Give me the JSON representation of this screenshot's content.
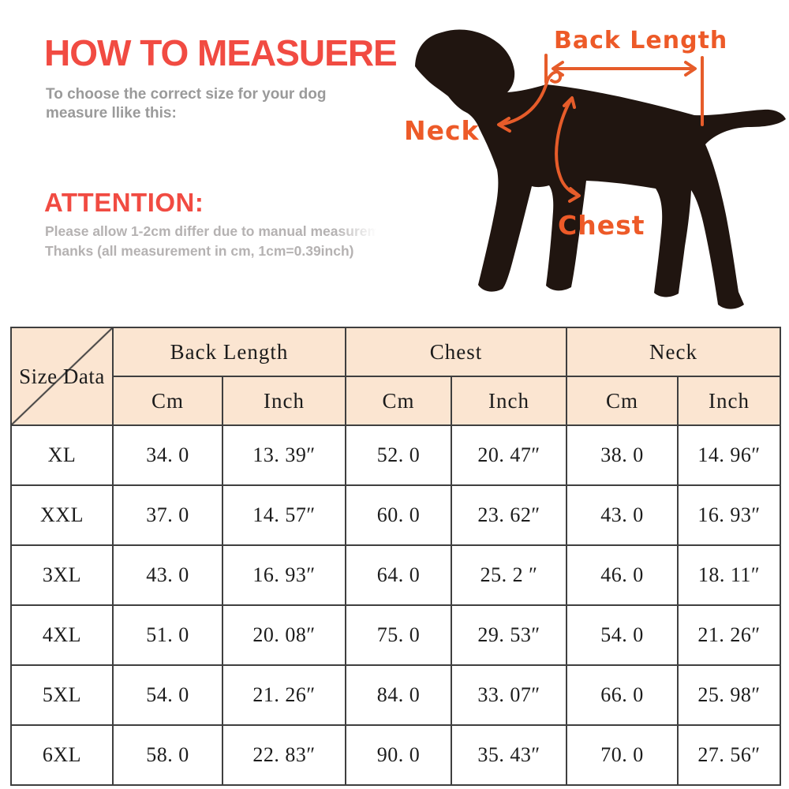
{
  "header": {
    "title": "HOW TO MEASUERE",
    "subtitle_line1": "To choose the correct size for your dog",
    "subtitle_line2": "measure llike this:",
    "attention_title": "ATTENTION:",
    "attention_line1": "Please allow 1-2cm differ due to manual measureme",
    "attention_line2": "Thanks (all measurement in cm, 1cm=0.39inch)"
  },
  "diagram": {
    "labels": {
      "back_length": "Back Length",
      "neck": "Neck",
      "chest": "Chest"
    },
    "colors": {
      "annotation_orange": "#ed5a28",
      "dog_silhouette": "#201510"
    }
  },
  "size_table": {
    "corner_label": "Size Data",
    "groups": [
      {
        "label": "Back Length"
      },
      {
        "label": "Chest"
      },
      {
        "label": "Neck"
      }
    ],
    "unit_headers": [
      "Cm",
      "Inch",
      "Cm",
      "Inch",
      "Cm",
      "Inch"
    ],
    "rows": [
      {
        "size": "XL",
        "values": [
          "34. 0",
          "13. 39″",
          "52. 0",
          "20. 47″",
          "38. 0",
          "14. 96″"
        ]
      },
      {
        "size": "XXL",
        "values": [
          "37. 0",
          "14. 57″",
          "60. 0",
          "23. 62″",
          "43. 0",
          "16. 93″"
        ]
      },
      {
        "size": "3XL",
        "values": [
          "43. 0",
          "16. 93″",
          "64. 0",
          "25. 2 ″",
          "46. 0",
          "18. 11″"
        ]
      },
      {
        "size": "4XL",
        "values": [
          "51. 0",
          "20. 08″",
          "75. 0",
          "29. 53″",
          "54. 0",
          "21. 26″"
        ]
      },
      {
        "size": "5XL",
        "values": [
          "54. 0",
          "21. 26″",
          "84. 0",
          "33. 07″",
          "66. 0",
          "25. 98″"
        ]
      },
      {
        "size": "6XL",
        "values": [
          "58. 0",
          "22. 83″",
          "90. 0",
          "35. 43″",
          "70. 0",
          "27. 56″"
        ]
      }
    ],
    "colors": {
      "header_bg": "#fbe5d1",
      "border": "#3f3f3f",
      "title_red": "#f14b42",
      "subtitle_gray": "#9a9a9a"
    }
  }
}
